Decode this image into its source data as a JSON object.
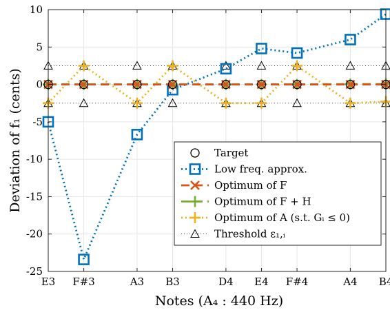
{
  "chart_data": {
    "type": "line",
    "xlabel": "Notes (A₄ : 440 Hz)",
    "ylabel": "Deviation of f₁ (cents)",
    "ylim": [
      -25,
      10
    ],
    "yticks": [
      -25,
      -20,
      -15,
      -10,
      -5,
      0,
      5,
      10
    ],
    "grid": true,
    "legend_position": "bottom-right",
    "categories": [
      "E3",
      "F#3",
      "A3",
      "B3",
      "D4",
      "E4",
      "F#4",
      "A4",
      "B4"
    ],
    "semitone_index": [
      0,
      2,
      5,
      7,
      10,
      12,
      14,
      17,
      19
    ],
    "series": [
      {
        "name": "Target",
        "color": "#000000",
        "marker": "circle",
        "line": "none",
        "values": [
          0,
          0,
          0,
          0,
          0,
          0,
          0,
          0,
          0
        ]
      },
      {
        "name": "Low freq. approx.",
        "color": "#0072BD",
        "marker": "square",
        "line": "dotted",
        "values": [
          -5.0,
          -23.4,
          -6.7,
          -0.7,
          2.1,
          4.8,
          4.2,
          6.0,
          9.4
        ]
      },
      {
        "name": "Optimum of F",
        "color": "#D95319",
        "marker": "x",
        "line": "dashed",
        "values": [
          0,
          0,
          0,
          0,
          0,
          0,
          0,
          0,
          0
        ]
      },
      {
        "name": "Optimum of F + H",
        "color": "#77AC30",
        "marker": "plus",
        "line": "dashed",
        "values": [
          0,
          0,
          0,
          0,
          0,
          0,
          0,
          0.05,
          0.05
        ]
      },
      {
        "name": "Optimum of A (s.t. Gᵢ ≤ 0)",
        "color": "#EDB120",
        "marker": "plus",
        "line": "dotted",
        "values": [
          -2.5,
          2.5,
          -2.5,
          2.5,
          -2.5,
          -2.5,
          2.5,
          -2.5,
          -2.3
        ]
      },
      {
        "name": "Threshold ε₁,ᵢ",
        "color": "#000000",
        "marker": "triangle",
        "line": "thin-dotted",
        "values_upper": [
          2.5,
          2.5,
          2.5,
          2.5,
          2.5,
          2.5,
          2.5,
          2.5,
          2.5
        ],
        "values_lower": [
          -2.5,
          -2.5,
          -2.5,
          -2.5,
          -2.5,
          -2.5,
          -2.5,
          -2.5,
          -2.5
        ]
      }
    ]
  }
}
